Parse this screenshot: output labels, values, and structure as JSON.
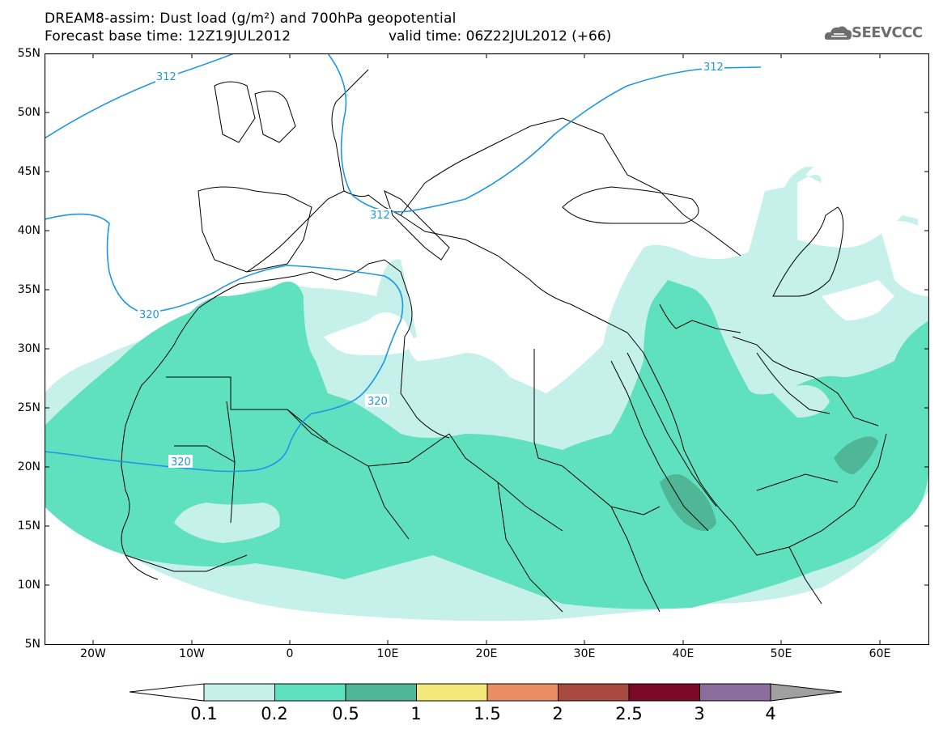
{
  "header": {
    "title_line1": "DREAM8-assim: Dust load (g/m²) and 700hPa geopotential",
    "title_line2": "Forecast base time: 12Z19JUL2012",
    "valid_time": "valid time: 06Z22JUL2012 (+66)"
  },
  "logo": {
    "text": "SEEVCCC",
    "icon": "cloud-icon"
  },
  "axes": {
    "lat_labels": [
      "55N",
      "50N",
      "45N",
      "40N",
      "35N",
      "30N",
      "25N",
      "20N",
      "15N",
      "10N",
      "5N"
    ],
    "lon_labels": [
      "20W",
      "10W",
      "0",
      "10E",
      "20E",
      "30E",
      "40E",
      "50E",
      "60E"
    ]
  },
  "contours": {
    "labels": [
      "312",
      "312",
      "312",
      "320",
      "320",
      "320"
    ]
  },
  "colorbar": {
    "labels": [
      "0.1",
      "0.2",
      "0.5",
      "1",
      "1.5",
      "2",
      "2.5",
      "3",
      "4"
    ],
    "colors": [
      "#c6f0ea",
      "#5fe0bf",
      "#4fb696",
      "#f3e87a",
      "#ea8d65",
      "#a84a40",
      "#7c0a26",
      "#8c6c9c",
      "#a0a0a0"
    ]
  },
  "colors": {
    "light_dust": "#c6f0ea",
    "medium_dust": "#5fe0bf",
    "heavy_dust": "#4fb696",
    "contour_line": "#1e96e6",
    "border_line": "#000000"
  }
}
